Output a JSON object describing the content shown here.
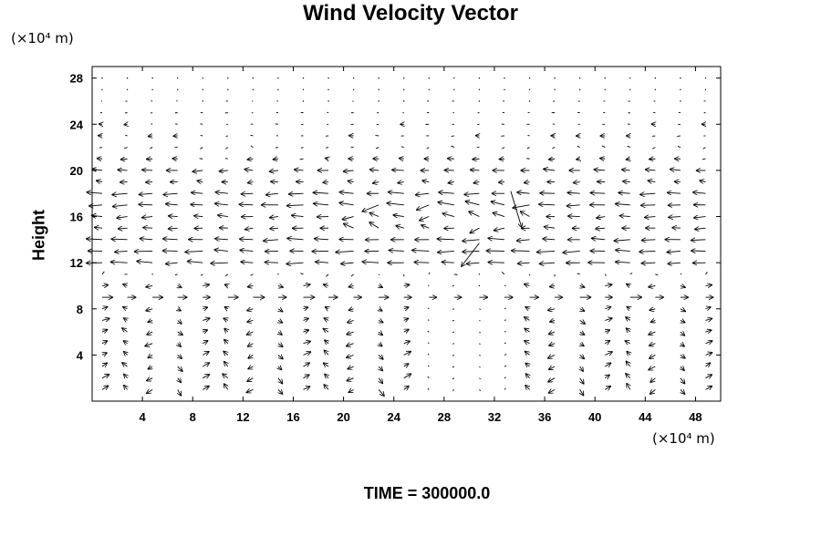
{
  "chart_data": {
    "type": "vector_field",
    "title": "Wind Velocity Vector",
    "ylabel": "Height",
    "xunit": "(×10⁴ m)",
    "yunit": "(×10⁴ m)",
    "xlim": [
      0,
      50
    ],
    "ylim": [
      0,
      29
    ],
    "xticks": [
      4,
      8,
      12,
      16,
      20,
      24,
      28,
      32,
      36,
      40,
      44,
      48
    ],
    "yticks": [
      4,
      8,
      12,
      16,
      20,
      24,
      28
    ],
    "grid": false,
    "bands": [
      {
        "y": 18,
        "u": -1.6,
        "v": 0
      },
      {
        "y": 17,
        "u": -1.7,
        "v": 0
      },
      {
        "y": 16,
        "u": -1.2,
        "v": 0
      },
      {
        "y": 15,
        "u": -1.1,
        "v": 0
      },
      {
        "y": 14,
        "u": -1.7,
        "v": 0
      },
      {
        "y": 13,
        "u": -1.8,
        "v": 0
      },
      {
        "y": 12,
        "u": -1.7,
        "v": 0
      },
      {
        "y": 20,
        "u": -1.2,
        "v": 0
      },
      {
        "y": 19,
        "u": -0.8,
        "v": 0
      },
      {
        "y": 22,
        "u": -0.3,
        "v": 0
      }
    ],
    "anomalies": [
      {
        "x": 33.3,
        "y": 18.2,
        "u": 1.2,
        "v": -4.0
      },
      {
        "x": 30.8,
        "y": 13.7,
        "u": -2.0,
        "v": -2.6
      }
    ]
  },
  "footer": {
    "time_label": "TIME = 300000.0"
  }
}
